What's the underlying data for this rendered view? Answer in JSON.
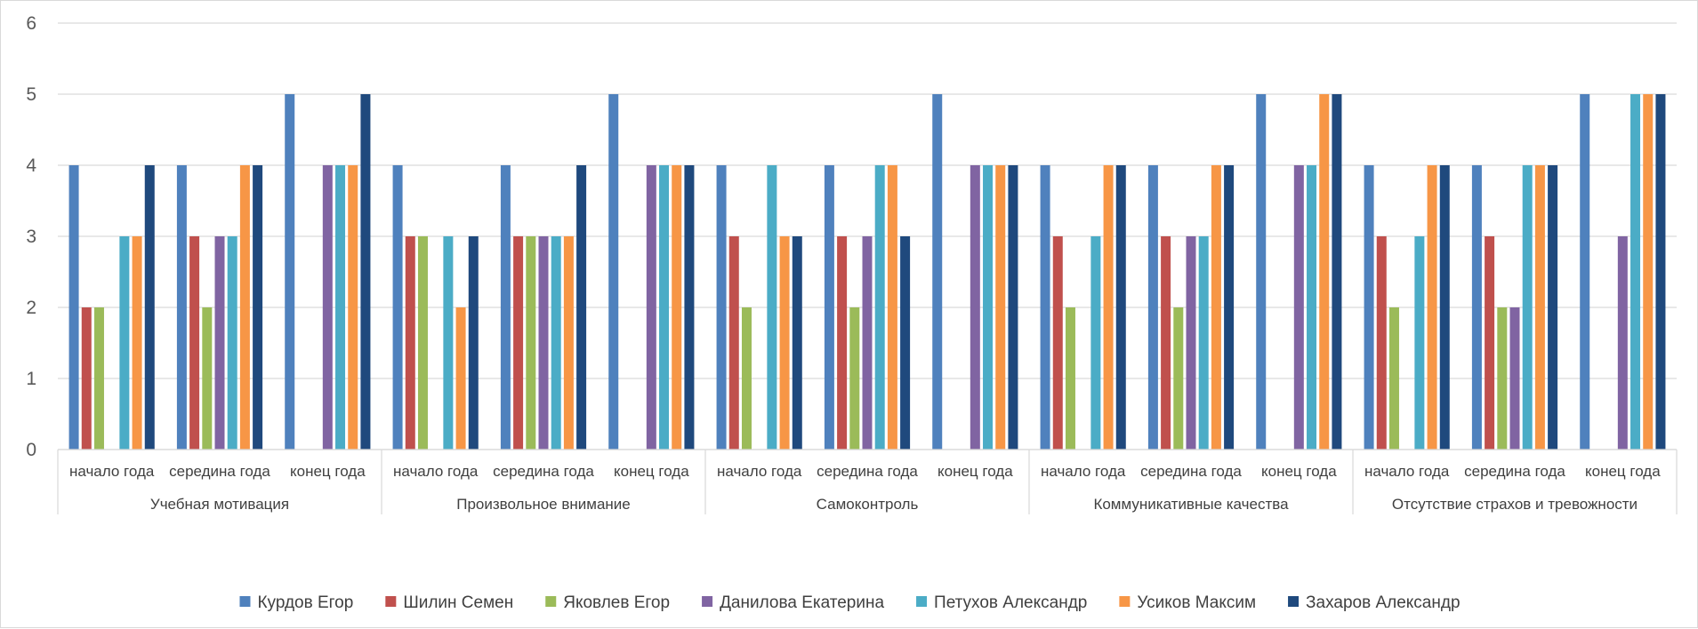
{
  "chart_data": {
    "type": "bar",
    "title": "",
    "xlabel": "",
    "ylabel": "",
    "ylim": [
      0,
      6
    ],
    "yticks": [
      0,
      1,
      2,
      3,
      4,
      5,
      6
    ],
    "grid": true,
    "legend_position": "bottom",
    "groups": [
      "Учебная  мотивация",
      "Произвольное внимание",
      "Самоконтроль",
      "Коммуникативные качества",
      "Отсутствие страхов и тревожности"
    ],
    "periods": [
      "начало года",
      "середина года",
      "конец года"
    ],
    "series": [
      {
        "name": "Курдов Егор",
        "color": "#4F81BD",
        "values": [
          4,
          4,
          5,
          4,
          4,
          5,
          4,
          4,
          5,
          4,
          4,
          5,
          4,
          4,
          5
        ]
      },
      {
        "name": "Шилин Семен",
        "color": "#C0504D",
        "values": [
          2,
          3,
          0,
          3,
          3,
          0,
          3,
          3,
          0,
          3,
          3,
          0,
          3,
          3,
          0
        ]
      },
      {
        "name": "Яковлев Егор",
        "color": "#9BBB59",
        "values": [
          2,
          2,
          0,
          3,
          3,
          0,
          2,
          2,
          0,
          2,
          2,
          0,
          2,
          2,
          0
        ]
      },
      {
        "name": "Данилова Екатерина",
        "color": "#8064A2",
        "values": [
          0,
          3,
          4,
          0,
          3,
          4,
          0,
          3,
          4,
          0,
          3,
          4,
          0,
          2,
          3
        ]
      },
      {
        "name": "Петухов Александр",
        "color": "#4BACC6",
        "values": [
          3,
          3,
          4,
          3,
          3,
          4,
          4,
          4,
          4,
          3,
          3,
          4,
          3,
          4,
          5
        ]
      },
      {
        "name": "Усиков Максим",
        "color": "#F79646",
        "values": [
          3,
          4,
          4,
          2,
          3,
          4,
          3,
          4,
          4,
          4,
          4,
          5,
          4,
          4,
          5
        ]
      },
      {
        "name": "Захаров Александр",
        "color": "#1F497D",
        "values": [
          4,
          4,
          5,
          3,
          4,
          4,
          3,
          3,
          4,
          4,
          4,
          5,
          4,
          4,
          5
        ]
      }
    ]
  }
}
